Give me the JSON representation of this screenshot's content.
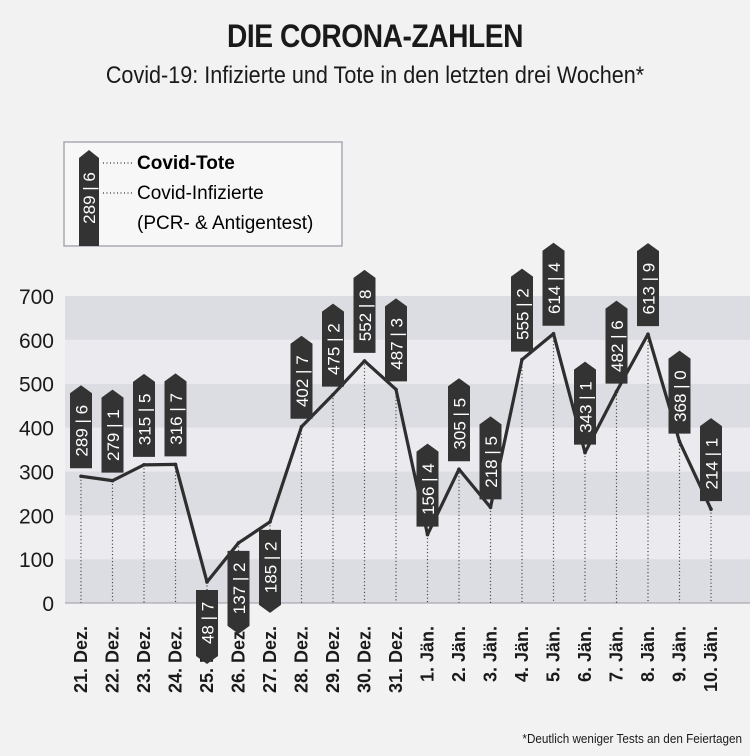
{
  "header": {
    "title": "DIE CORONA-ZAHLEN",
    "subtitle": "Covid-19: Infizierte und Tote in den letzten drei Wochen*"
  },
  "legend": {
    "sample_label": "289 | 6",
    "deaths_label": "Covid-Tote",
    "infected_label_line1": "Covid-Infizierte",
    "infected_label_line2": "(PCR- & Antigentest)"
  },
  "footnote": "*Deutlich weniger Tests an den Feiertagen",
  "colors": {
    "line": "#2e2e2e",
    "label_bg": "#333333",
    "label_text": "#ffffff",
    "band_dark": "#dcdce3",
    "band_light": "#ebebef"
  },
  "chart_data": {
    "type": "line",
    "x": [
      "21. Dez.",
      "22. Dez.",
      "23. Dez.",
      "24. Dez.",
      "25. Dez.",
      "26. Dez.",
      "27. Dez.",
      "28. Dez.",
      "29. Dez.",
      "30. Dez.",
      "31. Dez.",
      "1. Jän.",
      "2. Jän.",
      "3. Jän.",
      "4. Jän.",
      "5. Jän.",
      "6. Jän.",
      "7. Jän.",
      "8. Jän.",
      "9. Jän.",
      "10. Jän."
    ],
    "series": [
      {
        "name": "Covid-Infizierte (PCR- & Antigentest)",
        "values": [
          289,
          279,
          315,
          316,
          48,
          137,
          185,
          402,
          475,
          552,
          487,
          156,
          305,
          218,
          555,
          614,
          343,
          482,
          613,
          368,
          214
        ]
      },
      {
        "name": "Covid-Tote",
        "values": [
          6,
          1,
          5,
          7,
          7,
          2,
          2,
          7,
          2,
          8,
          3,
          4,
          5,
          5,
          2,
          4,
          1,
          6,
          9,
          0,
          1
        ]
      }
    ],
    "ylim": [
      0,
      700
    ],
    "yticks": [
      0,
      100,
      200,
      300,
      400,
      500,
      600,
      700
    ],
    "label_position": [
      "above",
      "above",
      "above",
      "above",
      "below",
      "below",
      "below",
      "above",
      "above",
      "above",
      "above",
      "above",
      "above",
      "above",
      "above",
      "above",
      "above",
      "above",
      "above",
      "above",
      "above"
    ]
  }
}
